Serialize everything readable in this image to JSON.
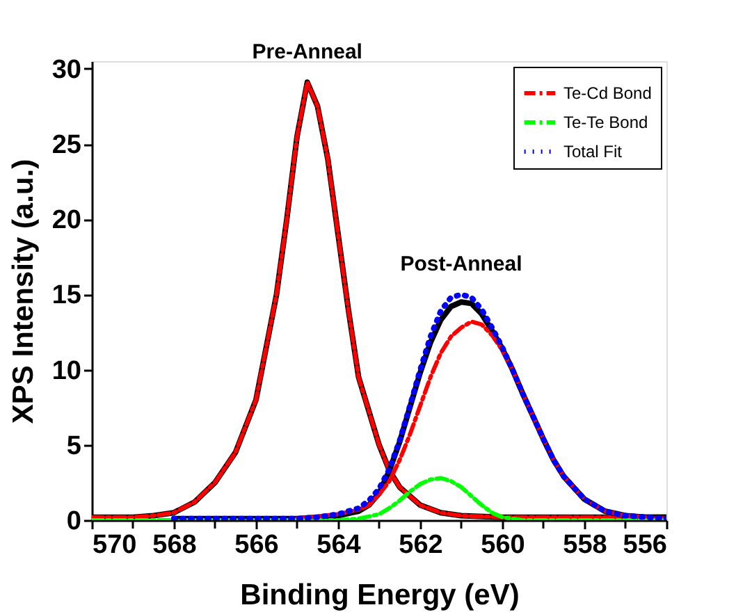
{
  "chart_data": {
    "type": "line",
    "xlabel": "Binding Energy (eV)",
    "ylabel": "XPS Intensity (a.u.)",
    "xlim": [
      570,
      556
    ],
    "ylim": [
      0,
      30.5
    ],
    "xticks": [
      570,
      {
        "value": 569,
        "label": null
      },
      568,
      {
        "value": 567,
        "label": null
      },
      566,
      {
        "value": 565,
        "label": null
      },
      564,
      {
        "value": 563,
        "label": null
      },
      562,
      {
        "value": 561,
        "label": null
      },
      560,
      {
        "value": 559,
        "label": null
      },
      558,
      {
        "value": 557,
        "label": null
      },
      556
    ],
    "yticks": [
      0,
      5,
      10,
      15,
      20,
      25,
      30
    ],
    "grid": false,
    "legend": "top right",
    "marker": "none",
    "annotations": [
      {
        "text": "Pre-Anneal",
        "x": 564.75,
        "y": 29.1
      },
      {
        "text": "Post-Anneal",
        "x": 561,
        "y": 15
      }
    ],
    "series": [
      {
        "color": "#000000",
        "line_style": "solid",
        "x": [
          570,
          569,
          568.5,
          568,
          567.5,
          567,
          566.5,
          566,
          565.5,
          565.25,
          565,
          564.75,
          564.5,
          564.25,
          564,
          563.75,
          563.5,
          563,
          562.75,
          562.5,
          562,
          561.5,
          561,
          560,
          558,
          556
        ],
        "values": [
          0.2,
          0.2,
          0.3,
          0.5,
          1.2,
          2.5,
          4.5,
          8,
          15,
          20,
          25.5,
          29.1,
          27.5,
          24,
          19,
          14,
          9.5,
          5,
          3.3,
          2.2,
          1.0,
          0.5,
          0.3,
          0.2,
          0.2,
          0.2
        ]
      },
      {
        "name": "Te-Cd Bond",
        "color": "#ff0000",
        "line_style": "dashed",
        "x": [
          570,
          569,
          568.5,
          568,
          567.5,
          567,
          566.5,
          566,
          565.5,
          565.25,
          565,
          564.75,
          564.5,
          564.25,
          564,
          563.75,
          563.5,
          563,
          562.75,
          562.5,
          562,
          561.5,
          561,
          560,
          558,
          556
        ],
        "values": [
          0.2,
          0.2,
          0.3,
          0.5,
          1.2,
          2.5,
          4.5,
          8,
          15,
          20,
          25.5,
          29.1,
          27.5,
          24,
          19,
          14,
          9.5,
          5,
          3.3,
          2.2,
          1.0,
          0.5,
          0.3,
          0.2,
          0.2,
          0.2
        ]
      },
      {
        "color": "#000000",
        "line_style": "solid",
        "x": [
          568,
          567,
          566,
          565,
          564.5,
          564,
          563.5,
          563.25,
          563,
          562.75,
          562.5,
          562.25,
          562,
          561.75,
          561.5,
          561.25,
          561,
          560.75,
          560.5,
          560.25,
          560,
          559.75,
          559.5,
          559.25,
          559,
          558.75,
          558.5,
          558,
          557.5,
          557,
          556.5,
          556
        ],
        "values": [
          0.1,
          0.1,
          0.1,
          0.1,
          0.2,
          0.3,
          0.6,
          1.0,
          1.8,
          3.3,
          5.2,
          7.5,
          9.8,
          11.8,
          13.3,
          14.2,
          14.5,
          14.4,
          13.7,
          12.6,
          11.4,
          10.0,
          8.4,
          6.9,
          5.4,
          4.0,
          2.9,
          1.4,
          0.6,
          0.3,
          0.2,
          0.2
        ]
      },
      {
        "color": "#ff0000",
        "line_style": "dashed",
        "x": [
          565,
          564,
          563.5,
          563.25,
          563,
          562.75,
          562.5,
          562.25,
          562,
          561.75,
          561.5,
          561.25,
          561,
          560.75,
          560.5,
          560.25,
          560,
          559.75,
          559.5,
          559.25,
          559,
          558.75,
          558.5,
          558,
          557.5,
          557,
          556.5,
          556
        ],
        "values": [
          0.1,
          0.4,
          0.7,
          1.0,
          1.7,
          2.6,
          4.0,
          5.7,
          7.6,
          9.5,
          11.1,
          12.2,
          12.8,
          13.2,
          13.0,
          12.3,
          11.3,
          10.0,
          8.4,
          6.9,
          5.4,
          4.0,
          2.9,
          1.4,
          0.6,
          0.3,
          0.2,
          0.1
        ]
      },
      {
        "name": "Te-Te Bond",
        "color": "#00ff00",
        "line_style": "dashed",
        "x": [
          570,
          564,
          563.5,
          563,
          562.75,
          562.5,
          562.25,
          562,
          561.75,
          561.5,
          561.25,
          561,
          560.75,
          560.5,
          560.25,
          560,
          559.5,
          556
        ],
        "values": [
          0,
          0,
          0.1,
          0.4,
          0.8,
          1.3,
          1.9,
          2.4,
          2.7,
          2.8,
          2.6,
          2.2,
          1.6,
          1.0,
          0.5,
          0.2,
          0,
          0
        ]
      },
      {
        "name": "Total Fit",
        "color": "#0000ff",
        "line_style": "dotted",
        "x": [
          568,
          567,
          566,
          565,
          564.5,
          564,
          563.5,
          563.25,
          563,
          562.75,
          562.5,
          562.25,
          562,
          561.75,
          561.5,
          561.25,
          561,
          560.75,
          560.5,
          560.25,
          560,
          559.75,
          559.5,
          559.25,
          559,
          558.75,
          558.5,
          558,
          557.5,
          557,
          556.5,
          556
        ],
        "values": [
          0.1,
          0.1,
          0.1,
          0.1,
          0.2,
          0.4,
          0.8,
          1.3,
          2.1,
          3.4,
          5.3,
          7.6,
          10.0,
          12.2,
          13.9,
          14.8,
          15.0,
          14.8,
          14.0,
          12.8,
          11.5,
          10.0,
          8.4,
          6.9,
          5.4,
          4.0,
          2.9,
          1.4,
          0.6,
          0.3,
          0.2,
          0.1
        ]
      }
    ]
  }
}
